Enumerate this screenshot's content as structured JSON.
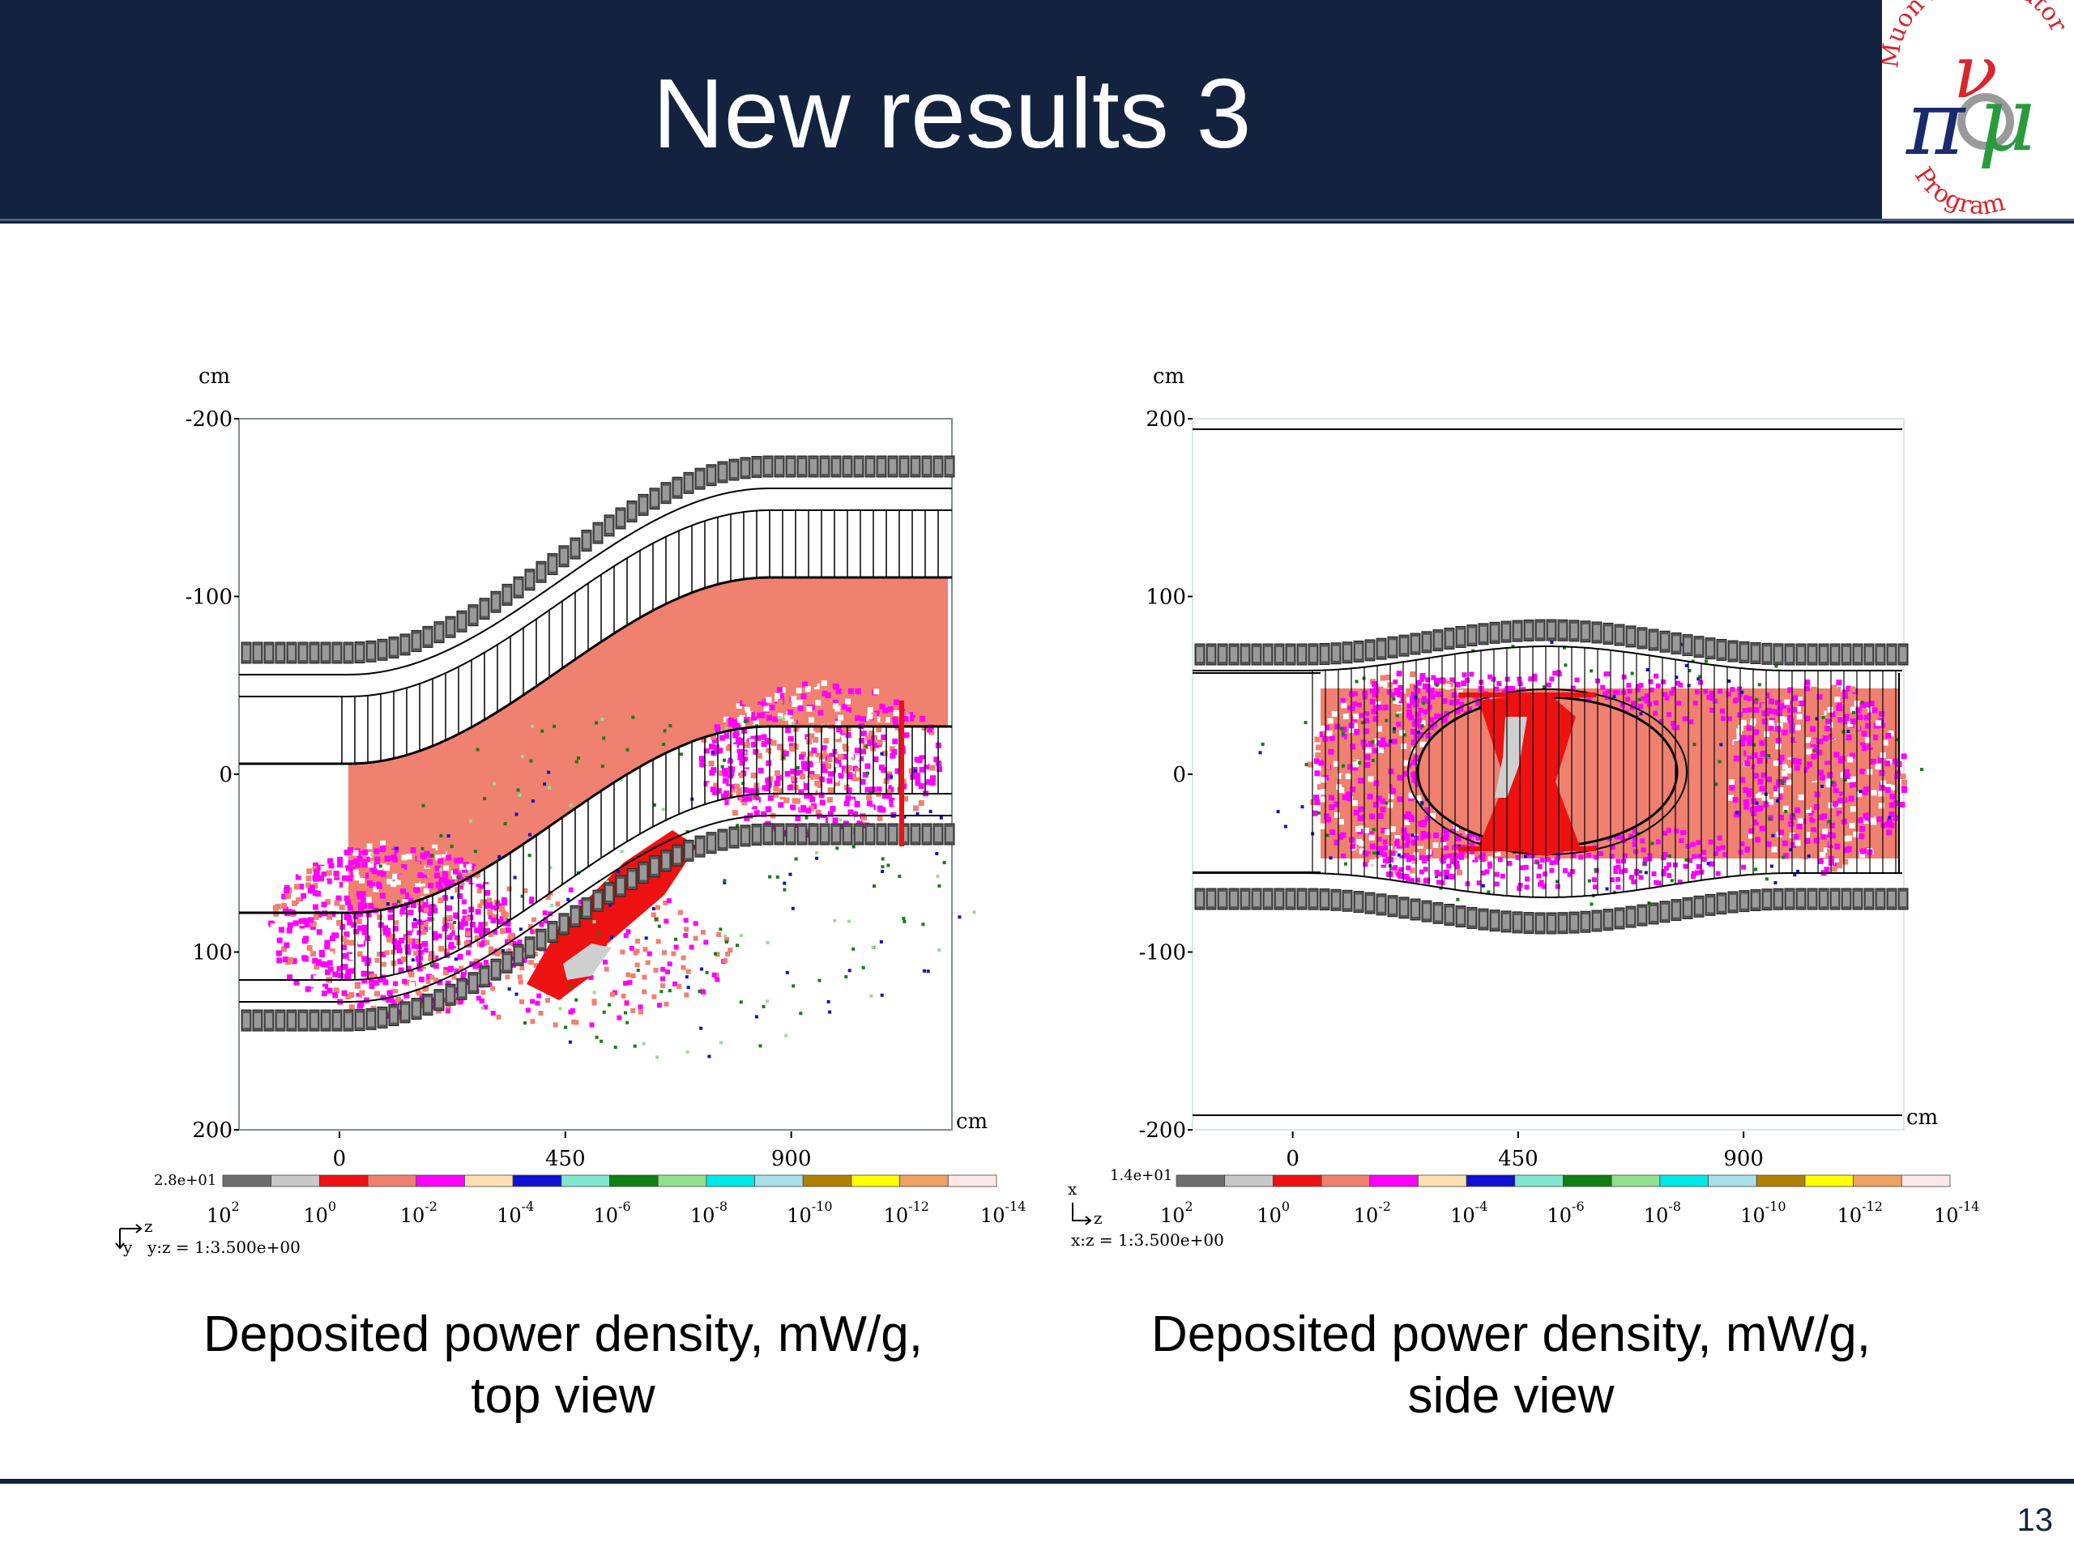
{
  "slide": {
    "title": "New results 3",
    "page_number": "13",
    "logo": {
      "text_top": "Muon Accelerator",
      "text_bottom": "Program",
      "colors": {
        "red": "#d8262e",
        "green": "#2a9b3c",
        "gray": "#9a9a9a",
        "navy": "#1b2a6b"
      }
    }
  },
  "captions": [
    {
      "line1": "Deposited power density, mW/g,",
      "line2": "top view"
    },
    {
      "line1": "Deposited power density, mW/g,",
      "line2": "side view"
    }
  ],
  "chart_data": [
    {
      "type": "heatmap",
      "view": "top view",
      "unit_label_y": "cm",
      "unit_label_x": "cm",
      "y_ticks": [
        "-200",
        "-100",
        "0",
        "100",
        "200"
      ],
      "y_range": [
        -200,
        200
      ],
      "x_ticks": [
        "0",
        "450",
        "900"
      ],
      "x_tick_values": [
        0,
        450,
        900
      ],
      "x_range": [
        -200,
        1220
      ],
      "colorbar_max": "2.8e+01",
      "colorbar_labels": [
        "10^2",
        "10^0",
        "10^-2",
        "10^-4",
        "10^-6",
        "10^-8",
        "10^-10",
        "10^-12",
        "10^-14"
      ],
      "axes_label_h": "z",
      "axes_label_v": "y",
      "scale_note": "y:z = 1:3.500e+00"
    },
    {
      "type": "heatmap",
      "view": "side view",
      "unit_label_y": "cm",
      "unit_label_x": "cm",
      "y_ticks": [
        "200",
        "100",
        "0",
        "-100",
        "-200"
      ],
      "y_range": [
        200,
        -200
      ],
      "x_ticks": [
        "0",
        "450",
        "900"
      ],
      "x_tick_values": [
        0,
        450,
        900
      ],
      "x_range": [
        -200,
        1220
      ],
      "colorbar_max": "1.4e+01",
      "colorbar_labels": [
        "10^2",
        "10^0",
        "10^-2",
        "10^-4",
        "10^-6",
        "10^-8",
        "10^-10",
        "10^-12",
        "10^-14"
      ],
      "axes_label_h": "z",
      "axes_label_v": "x",
      "scale_note": "x:z = 1:3.500e+00"
    }
  ],
  "colorbar_colors": [
    "#6e6e6e",
    "#c8c8c8",
    "#ee1111",
    "#f08070",
    "#ff00ff",
    "#ffe0b0",
    "#1010d0",
    "#7fe8d0",
    "#108010",
    "#90e090",
    "#00e8e8",
    "#a8e0e8",
    "#b08000",
    "#ffff00",
    "#f0a060",
    "#ffe8e8"
  ],
  "heatmap_colors": {
    "red": "#ee1111",
    "salmon": "#f08070",
    "magenta": "#ff00ff",
    "gray": "#cfcfcf",
    "green": "#108010",
    "blue": "#1010d0"
  }
}
